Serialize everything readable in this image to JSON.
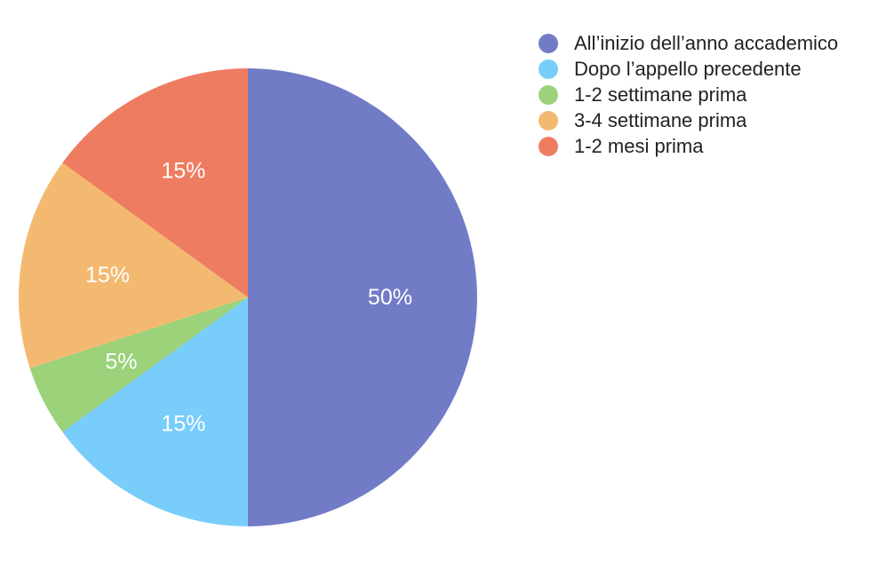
{
  "chart_data": {
    "type": "pie",
    "start_angle": "top",
    "direction": "clockwise",
    "legend_position": "top-right",
    "slices": [
      {
        "label": "All’inizio dell’anno accademico",
        "value": 50,
        "value_label": "50%",
        "color": "#717BC6"
      },
      {
        "label": "Dopo l’appello precedente",
        "value": 15,
        "value_label": "15%",
        "color": "#78CDFA"
      },
      {
        "label": "1-2 settimane prima",
        "value": 5,
        "value_label": "5%",
        "color": "#9BD27A"
      },
      {
        "label": "3-4 settimane prima",
        "value": 15,
        "value_label": "15%",
        "color": "#F4B970"
      },
      {
        "label": "1-2 mesi prima",
        "value": 15,
        "value_label": "15%",
        "color": "#EE7C60"
      }
    ]
  }
}
